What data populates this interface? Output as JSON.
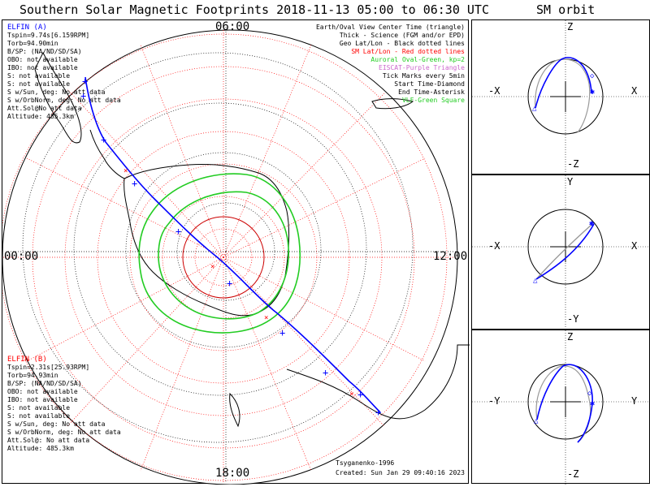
{
  "title": "Southern Solar Magnetic Footprints 2018-11-13 05:00 to 06:30 UTC",
  "orbit_title": "SM orbit",
  "hours": {
    "top": "06:00",
    "left": "00:00",
    "right": "12:00",
    "bottom": "18:00"
  },
  "legend": [
    {
      "text": "Earth/Oval View Center Time (triangle)",
      "color": "#000000"
    },
    {
      "text": "Thick - Science (FGM and/or EPD)",
      "color": "#000000"
    },
    {
      "text": "Geo Lat/Lon - Black dotted lines",
      "color": "#000000"
    },
    {
      "text": "SM Lat/Lon - Red dotted lines",
      "color": "#ff0000"
    },
    {
      "text": "Auroral Oval-Green, kp=2",
      "color": "#22cc22"
    },
    {
      "text": "EISCAT-Purple Triangle",
      "color": "#cc66cc"
    },
    {
      "text": "Tick Marks every 5min",
      "color": "#000000"
    },
    {
      "text": "Start Time-Diamond",
      "color": "#000000"
    },
    {
      "text": "End Time-Asterisk",
      "color": "#000000"
    },
    {
      "text": "VLF-Green Square",
      "color": "#22cc22"
    }
  ],
  "elfin_a": {
    "name": "ELFIN (A)",
    "color": "#0000ff",
    "lines": [
      "Tspin=9.74s[6.159RPM]",
      "Torb=94.90min",
      "B/SP: (NA/ND/SD/SA)",
      "OBO: not available",
      "IBO: not available",
      "S: not available",
      "S: not available",
      "S w/Sun, deg: No att data",
      "S w/OrbNorm, deg: No att data",
      "Att.Sol@No att data",
      "Altitude: 485.3km"
    ]
  },
  "elfin_b": {
    "name": "ELFIN (B)",
    "color": "#ff0000",
    "lines": [
      "Tspin=2.31s[25.93RPM]",
      "Torb=94.93min",
      "B/SP: (NA/ND/SD/SA)",
      "OBO: not available",
      "IBO: not available",
      "S: not available",
      "S: not available",
      "S w/Sun, deg: No att data",
      "S w/OrbNorm, deg: No att data",
      "Att.Sol@: No att data",
      "Altitude: 485.3km"
    ]
  },
  "credit": "Tsyganenko-1996",
  "created": "Created: Sun Jan 29 09:40:16 2023",
  "orbit_panels": [
    {
      "top": "Z",
      "bottom": "-Z",
      "left": "-X",
      "right": "X"
    },
    {
      "top": "Y",
      "bottom": "-Y",
      "left": "-X",
      "right": "X"
    },
    {
      "top": "Z",
      "bottom": "-Z",
      "left": "-Y",
      "right": "Y"
    }
  ],
  "colors": {
    "track_a": "#0000ff",
    "track_b": "#ff0000",
    "oval": "#22cc22",
    "sm_grid": "#ff0000",
    "geo_grid": "#000000",
    "orbit_gray": "#999999"
  }
}
